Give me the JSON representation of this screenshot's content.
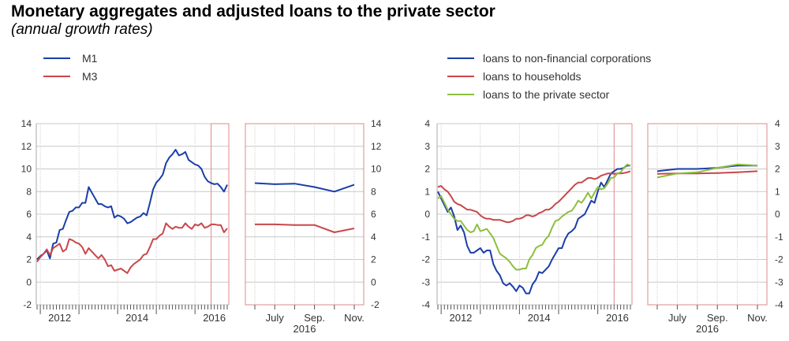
{
  "title": "Monetary aggregates and adjusted loans to the private sector",
  "subtitle": "(annual growth rates)",
  "chart_data": [
    {
      "type": "line",
      "start_month": "2011-12",
      "year_labels": [
        "2012",
        "2014",
        "2016"
      ],
      "detail_months": [
        "July",
        "Sep.",
        "Nov."
      ],
      "detail_year": "2016",
      "ylim": [
        -2,
        14
      ],
      "yticks": [
        "-2",
        "0",
        "2",
        "4",
        "6",
        "8",
        "10",
        "12",
        "14"
      ],
      "grid": true,
      "legend_position": "top-left",
      "series": [
        {
          "name": "M1",
          "color": "#1a3ea8",
          "values": [
            2.0,
            2.3,
            2.5,
            2.8,
            2.1,
            3.4,
            3.5,
            4.6,
            4.7,
            5.5,
            6.2,
            6.3,
            6.6,
            6.6,
            7.0,
            7.0,
            8.4,
            7.9,
            7.4,
            6.9,
            6.9,
            6.7,
            6.6,
            6.7,
            5.7,
            5.9,
            5.8,
            5.6,
            5.2,
            5.3,
            5.5,
            5.7,
            5.8,
            6.1,
            5.9,
            7.0,
            8.2,
            8.8,
            9.1,
            9.5,
            10.5,
            11.0,
            11.3,
            11.7,
            11.2,
            11.3,
            11.5,
            10.8,
            10.6,
            10.4,
            10.3,
            10.0,
            9.3,
            8.9,
            8.75,
            8.65,
            8.7,
            8.4,
            8.0,
            8.6
          ]
        },
        {
          "name": "M3",
          "color": "#c8474a",
          "values": [
            1.8,
            2.2,
            2.5,
            2.9,
            2.4,
            3.0,
            3.2,
            3.4,
            2.7,
            2.9,
            3.8,
            3.7,
            3.5,
            3.4,
            3.1,
            2.5,
            3.0,
            2.7,
            2.4,
            2.1,
            2.4,
            2.0,
            1.4,
            1.5,
            1.0,
            1.1,
            1.2,
            1.0,
            0.8,
            1.3,
            1.6,
            1.8,
            2.0,
            2.4,
            2.5,
            3.1,
            3.8,
            3.8,
            4.1,
            4.3,
            5.2,
            4.9,
            4.7,
            4.9,
            4.8,
            4.8,
            5.2,
            4.9,
            4.7,
            5.1,
            5.0,
            5.2,
            4.8,
            4.9,
            5.1,
            5.1,
            5.05,
            5.05,
            4.4,
            4.75
          ]
        }
      ]
    },
    {
      "type": "line",
      "start_month": "2011-12",
      "year_labels": [
        "2012",
        "2014",
        "2016"
      ],
      "detail_months": [
        "July",
        "Sep.",
        "Nov."
      ],
      "detail_year": "2016",
      "ylim": [
        -4,
        4
      ],
      "yticks": [
        "-4",
        "-3",
        "-2",
        "-1",
        "0",
        "1",
        "2",
        "3",
        "4"
      ],
      "grid": true,
      "legend_position": "top-left",
      "series": [
        {
          "name": "loans to non-financial corporations",
          "color": "#1a3ea8",
          "values": [
            1.0,
            0.7,
            0.4,
            0.1,
            0.3,
            -0.1,
            -0.7,
            -0.5,
            -0.8,
            -1.4,
            -1.7,
            -1.7,
            -1.6,
            -1.5,
            -1.7,
            -1.6,
            -1.6,
            -2.2,
            -2.5,
            -2.7,
            -3.05,
            -3.15,
            -3.05,
            -3.2,
            -3.4,
            -3.15,
            -3.25,
            -3.5,
            -3.5,
            -3.1,
            -2.9,
            -2.55,
            -2.6,
            -2.45,
            -2.3,
            -2.0,
            -1.75,
            -1.5,
            -1.5,
            -1.1,
            -0.85,
            -0.75,
            -0.6,
            -0.2,
            -0.1,
            0.0,
            0.3,
            0.6,
            0.5,
            1.0,
            1.4,
            1.2,
            1.5,
            1.8,
            1.9,
            2.0,
            2.0,
            2.05,
            2.15,
            2.15
          ]
        },
        {
          "name": "loans to households",
          "color": "#c8474a",
          "values": [
            1.2,
            1.25,
            1.1,
            1.0,
            0.8,
            0.55,
            0.45,
            0.4,
            0.3,
            0.2,
            0.2,
            0.15,
            0.1,
            -0.05,
            -0.15,
            -0.2,
            -0.2,
            -0.25,
            -0.25,
            -0.25,
            -0.3,
            -0.35,
            -0.35,
            -0.3,
            -0.2,
            -0.2,
            -0.15,
            -0.05,
            -0.05,
            -0.1,
            -0.05,
            0.05,
            0.1,
            0.2,
            0.2,
            0.3,
            0.45,
            0.55,
            0.7,
            0.85,
            1.0,
            1.15,
            1.3,
            1.4,
            1.4,
            1.5,
            1.6,
            1.6,
            1.55,
            1.6,
            1.7,
            1.75,
            1.8,
            1.8,
            1.78,
            1.8,
            1.8,
            1.82,
            1.85,
            1.9
          ]
        },
        {
          "name": "loans to the private sector",
          "color": "#8cbf3f",
          "values": [
            0.7,
            0.8,
            0.5,
            0.2,
            0.0,
            -0.2,
            -0.3,
            -0.3,
            -0.5,
            -0.7,
            -0.8,
            -0.75,
            -0.45,
            -0.75,
            -0.7,
            -0.65,
            -0.85,
            -1.05,
            -1.4,
            -1.75,
            -1.85,
            -1.95,
            -2.1,
            -2.3,
            -2.45,
            -2.45,
            -2.4,
            -2.4,
            -2.0,
            -1.8,
            -1.5,
            -1.4,
            -1.35,
            -1.1,
            -0.95,
            -0.6,
            -0.3,
            -0.25,
            -0.1,
            0.0,
            0.1,
            0.15,
            0.35,
            0.6,
            0.5,
            0.7,
            0.95,
            0.7,
            0.95,
            1.2,
            1.1,
            1.15,
            1.35,
            1.6,
            1.62,
            1.8,
            1.85,
            2.05,
            2.2,
            2.15
          ]
        }
      ]
    }
  ]
}
